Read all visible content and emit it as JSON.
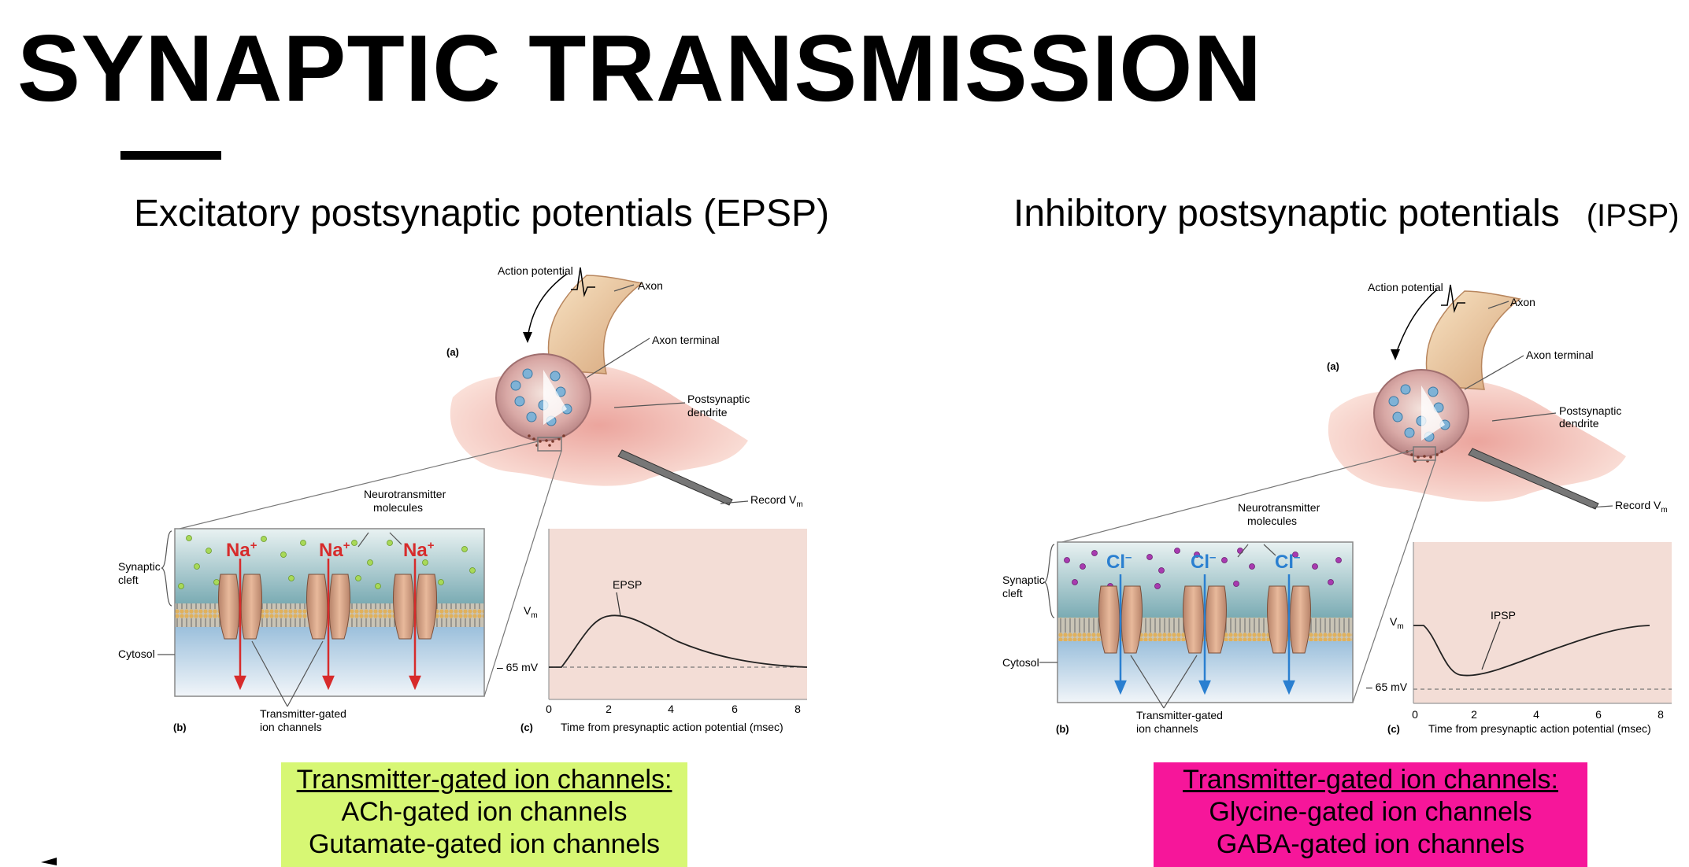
{
  "page": {
    "title": "SYNAPTIC TRANSMISSION"
  },
  "colors": {
    "excitatory_box": "#d7f774",
    "inhibitory_box": "#f6169a",
    "graph_bg": "#f3ddd6",
    "na_label": "#d72b2b",
    "cl_label": "#2a7fd0"
  },
  "epsp": {
    "heading": "Excitatory postsynaptic potentials (EPSP)",
    "fig": {
      "label_a": "(a)",
      "label_b": "(b)",
      "label_c": "(c)",
      "action_potential": "Action potential",
      "axon": "Axon",
      "axon_terminal": "Axon terminal",
      "postsynaptic_1": "Postsynaptic",
      "postsynaptic_2": "dendrite",
      "record": "Record V",
      "record_sub": "m",
      "neuro_1": "Neurotransmitter",
      "neuro_2": "molecules",
      "cleft_1": "Synaptic",
      "cleft_2": "cleft",
      "cytosol": "Cytosol",
      "ion": "Na",
      "ion_charge": "+",
      "tgic_1": "Transmitter-gated",
      "tgic_2": "ion channels"
    },
    "graph": {
      "ylabel": "V",
      "ylabel_sub": "m",
      "baseline": "– 65 mV",
      "peak_label": "EPSP",
      "xlabel": "Time from presynaptic action potential (msec)",
      "ticks": [
        "0",
        "2",
        "4",
        "6",
        "8"
      ]
    },
    "box": {
      "heading": "Transmitter-gated ion channels:",
      "line1": "ACh-gated ion channels",
      "line2": "Gutamate-gated ion channels"
    }
  },
  "ipsp": {
    "heading": "Inhibitory postsynaptic potentials",
    "heading_abbr": "(IPSP)",
    "fig": {
      "label_a": "(a)",
      "label_b": "(b)",
      "label_c": "(c)",
      "action_potential": "Action potential",
      "axon": "Axon",
      "axon_terminal": "Axon terminal",
      "postsynaptic_1": "Postsynaptic",
      "postsynaptic_2": "dendrite",
      "record": "Record V",
      "record_sub": "m",
      "neuro_1": "Neurotransmitter",
      "neuro_2": "molecules",
      "cleft_1": "Synaptic",
      "cleft_2": "cleft",
      "cytosol": "Cytosol",
      "ion": "Cl",
      "ion_charge": "–",
      "tgic_1": "Transmitter-gated",
      "tgic_2": "ion channels"
    },
    "graph": {
      "ylabel": "V",
      "ylabel_sub": "m",
      "baseline": "– 65 mV",
      "peak_label": "IPSP",
      "xlabel": "Time from presynaptic action potential (msec)",
      "ticks": [
        "0",
        "2",
        "4",
        "6",
        "8"
      ]
    },
    "box": {
      "heading": "Transmitter-gated ion channels:",
      "line1": "Glycine-gated ion channels",
      "line2": "GABA-gated ion channels"
    }
  }
}
